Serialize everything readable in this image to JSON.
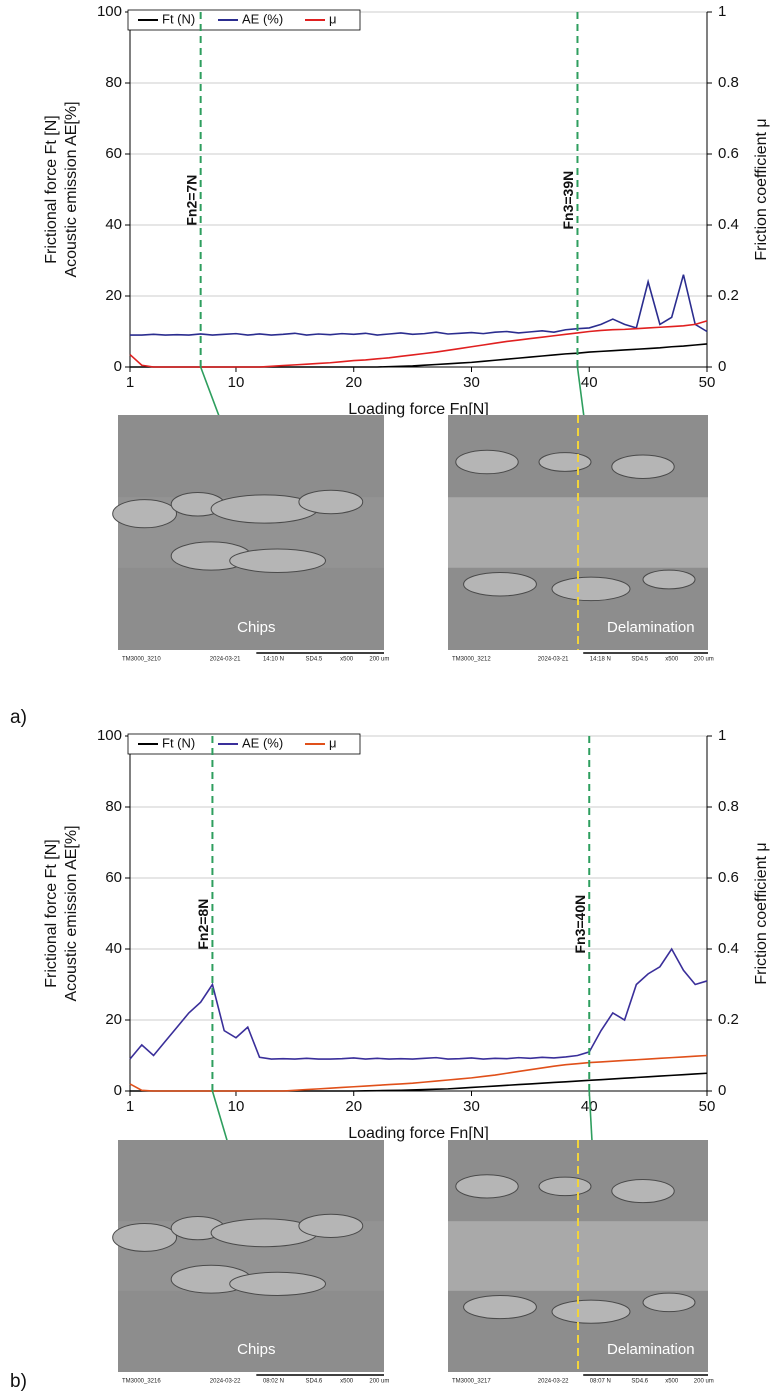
{
  "chart_data": [
    {
      "type": "line",
      "panel_label": "a)",
      "xlabel": "Loading force Fn[N]",
      "ylabel": [
        "Frictional force Ft [N]",
        "Acoustic emission AE[%]"
      ],
      "y2label": "Friction coefficient μ",
      "xlim": [
        1,
        50
      ],
      "xticks": [
        1,
        10,
        20,
        30,
        40,
        50
      ],
      "ylim": [
        0,
        100
      ],
      "yticks": [
        0,
        20,
        40,
        60,
        80,
        100
      ],
      "y2lim": [
        0,
        1
      ],
      "y2ticks": [
        0,
        0.2,
        0.4,
        0.6,
        0.8,
        1
      ],
      "grid": true,
      "legend": "top-left",
      "x": [
        1,
        2,
        3,
        4,
        5,
        6,
        7,
        8,
        9,
        10,
        11,
        12,
        13,
        14,
        15,
        16,
        17,
        18,
        19,
        20,
        21,
        22,
        23,
        24,
        25,
        26,
        27,
        28,
        29,
        30,
        31,
        32,
        33,
        34,
        35,
        36,
        37,
        38,
        39,
        40,
        41,
        42,
        43,
        44,
        45,
        46,
        47,
        48,
        49,
        50
      ],
      "series": [
        {
          "name": "Ft (N)",
          "color": "#000000",
          "values": [
            0,
            0,
            0,
            0,
            0,
            0,
            0,
            0,
            0,
            0,
            0,
            0,
            0,
            0,
            0,
            0,
            0,
            0,
            0,
            0,
            0,
            0,
            0.1,
            0.2,
            0.3,
            0.5,
            0.7,
            0.9,
            1.1,
            1.3,
            1.6,
            1.9,
            2.2,
            2.5,
            2.8,
            3.1,
            3.4,
            3.7,
            3.9,
            4.2,
            4.4,
            4.6,
            4.8,
            5,
            5.2,
            5.4,
            5.7,
            5.9,
            6.2,
            6.5
          ]
        },
        {
          "name": "AE (%)",
          "color": "#2b2d8f",
          "values": [
            9,
            9,
            9.2,
            9,
            9.1,
            9,
            9.3,
            9,
            9.2,
            9.4,
            9,
            9.3,
            9,
            9.2,
            9.5,
            9,
            9.3,
            9.1,
            9.4,
            9.2,
            9.5,
            9,
            9.3,
            9.6,
            9.2,
            9.4,
            9.8,
            9.3,
            9.5,
            9.7,
            9.4,
            9.8,
            10,
            9.6,
            9.9,
            10.2,
            9.8,
            10.5,
            10.8,
            11,
            12,
            13.5,
            12,
            11,
            24,
            12,
            14,
            26,
            12,
            10
          ]
        },
        {
          "name": "μ",
          "color": "#e02020",
          "axis": "y2",
          "values": [
            0.035,
            0.005,
            0,
            0,
            0,
            0,
            0,
            0,
            0,
            0,
            0,
            0,
            0.002,
            0.004,
            0.006,
            0.008,
            0.01,
            0.012,
            0.015,
            0.018,
            0.02,
            0.023,
            0.026,
            0.03,
            0.034,
            0.038,
            0.042,
            0.047,
            0.052,
            0.057,
            0.062,
            0.067,
            0.072,
            0.076,
            0.08,
            0.084,
            0.088,
            0.092,
            0.096,
            0.1,
            0.103,
            0.105,
            0.106,
            0.108,
            0.11,
            0.112,
            0.114,
            0.116,
            0.12,
            0.13
          ]
        }
      ],
      "annotations": [
        {
          "text": "Fn2=7N",
          "x": 7
        },
        {
          "text": "Fn3=39N",
          "x": 39
        }
      ],
      "images": [
        {
          "caption": "Chips",
          "footer": [
            "TM3000_3210",
            "2024-03-21",
            "14:10 N",
            "SD4.5",
            "x500",
            "200 um"
          ]
        },
        {
          "caption": "Delamination",
          "footer": [
            "TM3000_3212",
            "2024-03-21",
            "14:18 N",
            "SD4.5",
            "x500",
            "200 um"
          ]
        }
      ]
    },
    {
      "type": "line",
      "panel_label": "b)",
      "xlabel": "Loading force Fn[N]",
      "ylabel": [
        "Frictional force Ft [N]",
        "Acoustic emission AE[%]"
      ],
      "y2label": "Friction coefficient μ",
      "xlim": [
        1,
        50
      ],
      "xticks": [
        1,
        10,
        20,
        30,
        40,
        50
      ],
      "ylim": [
        0,
        100
      ],
      "yticks": [
        0,
        20,
        40,
        60,
        80,
        100
      ],
      "y2lim": [
        0,
        1
      ],
      "y2ticks": [
        0,
        0.2,
        0.4,
        0.6,
        0.8,
        1
      ],
      "grid": true,
      "legend": "top-left",
      "x": [
        1,
        2,
        3,
        4,
        5,
        6,
        7,
        8,
        9,
        10,
        11,
        12,
        13,
        14,
        15,
        16,
        17,
        18,
        19,
        20,
        21,
        22,
        23,
        24,
        25,
        26,
        27,
        28,
        29,
        30,
        31,
        32,
        33,
        34,
        35,
        36,
        37,
        38,
        39,
        40,
        41,
        42,
        43,
        44,
        45,
        46,
        47,
        48,
        49,
        50
      ],
      "series": [
        {
          "name": "Ft (N)",
          "color": "#000000",
          "values": [
            0,
            0,
            0,
            0,
            0,
            0,
            0,
            0,
            0,
            0,
            0,
            0,
            0,
            0,
            0,
            0,
            0,
            0,
            0,
            0,
            0.05,
            0.1,
            0.15,
            0.2,
            0.3,
            0.4,
            0.5,
            0.6,
            0.8,
            1,
            1.2,
            1.4,
            1.6,
            1.8,
            2,
            2.2,
            2.4,
            2.6,
            2.8,
            3,
            3.2,
            3.4,
            3.6,
            3.8,
            4,
            4.2,
            4.4,
            4.6,
            4.8,
            5
          ]
        },
        {
          "name": "AE (%)",
          "color": "#3a2f9a",
          "values": [
            9,
            13,
            10,
            14,
            18,
            22,
            25,
            30,
            17,
            15,
            18,
            9.5,
            9,
            9.1,
            9,
            9.2,
            9,
            9,
            9.1,
            9.3,
            9,
            9.2,
            9,
            9.1,
            9,
            9.2,
            9.4,
            9,
            9.1,
            9.3,
            9,
            9.2,
            9.1,
            9.4,
            9.2,
            9.5,
            9.3,
            9.6,
            10,
            11,
            17,
            22,
            20,
            30,
            33,
            35,
            40,
            34,
            30,
            31
          ]
        },
        {
          "name": "μ",
          "color": "#e0501a",
          "axis": "y2",
          "values": [
            0.02,
            0.002,
            0,
            0,
            0,
            0,
            0,
            0,
            0,
            0,
            0,
            0,
            0,
            0,
            0.002,
            0.004,
            0.006,
            0.008,
            0.01,
            0.012,
            0.014,
            0.016,
            0.018,
            0.02,
            0.022,
            0.025,
            0.028,
            0.031,
            0.034,
            0.037,
            0.041,
            0.045,
            0.05,
            0.055,
            0.06,
            0.065,
            0.07,
            0.074,
            0.077,
            0.08,
            0.082,
            0.084,
            0.086,
            0.088,
            0.09,
            0.092,
            0.094,
            0.096,
            0.098,
            0.1
          ]
        }
      ],
      "annotations": [
        {
          "text": "Fn2=8N",
          "x": 8
        },
        {
          "text": "Fn3=40N",
          "x": 40
        }
      ],
      "images": [
        {
          "caption": "Chips",
          "footer": [
            "TM3000_3216",
            "2024-03-22",
            "08:02 N",
            "SD4.6",
            "x500",
            "200 um"
          ]
        },
        {
          "caption": "Delamination",
          "footer": [
            "TM3000_3217",
            "2024-03-22",
            "08:07 N",
            "SD4.6",
            "x500",
            "200 um"
          ]
        }
      ]
    }
  ]
}
